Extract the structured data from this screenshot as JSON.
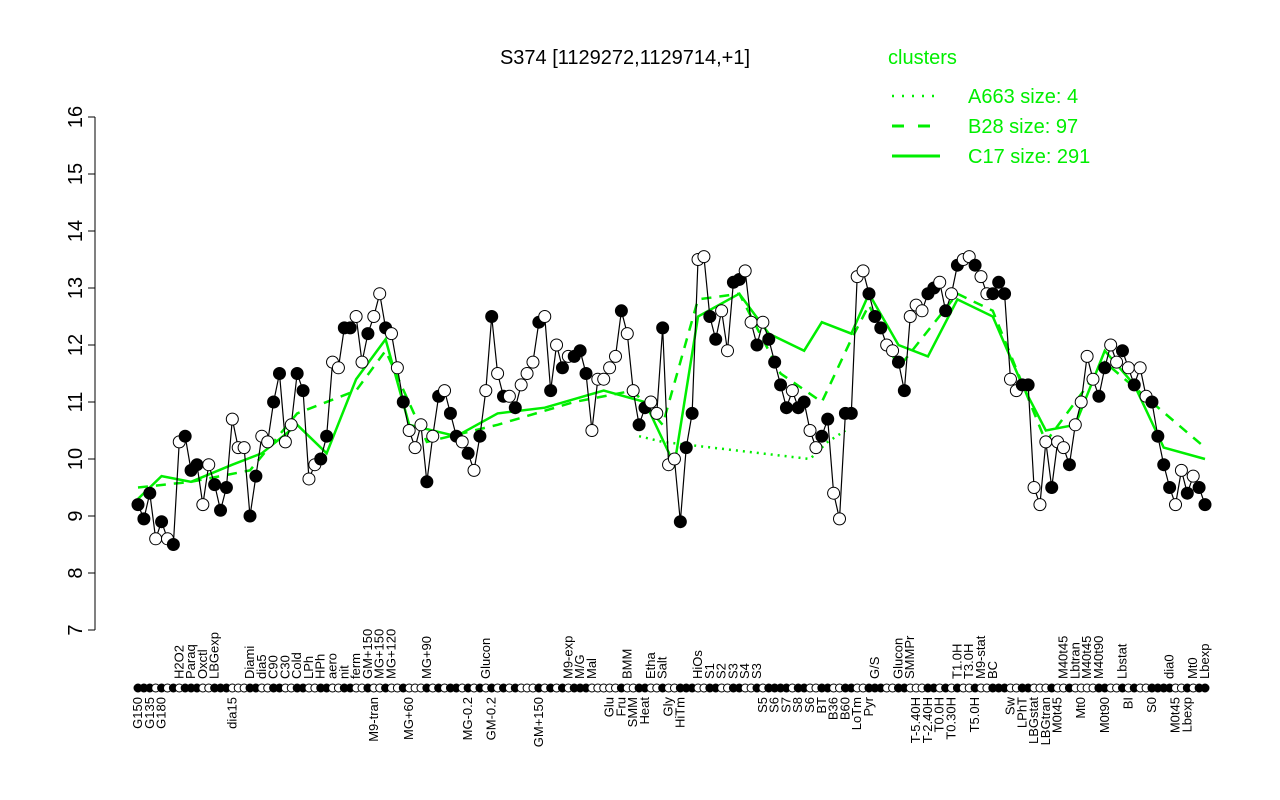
{
  "chart_data": {
    "type": "line",
    "title": "S374 [1129272,1129714,+1]",
    "xlabel": "",
    "ylabel": "",
    "ylim": [
      7,
      16
    ],
    "yticks": [
      7,
      8,
      9,
      10,
      11,
      12,
      13,
      14,
      15,
      16
    ],
    "grid": false,
    "legend": {
      "title": "clusters",
      "placement": "top-right",
      "entries": [
        {
          "label": "A663 size: 4",
          "style": "dotted"
        },
        {
          "label": "B28 size: 97",
          "style": "dashed"
        },
        {
          "label": "C17 size: 291",
          "style": "solid"
        }
      ]
    },
    "colors": {
      "points": "#000000",
      "clusters": "#00ee00"
    },
    "points": [
      [
        "G150",
        9.2,
        1
      ],
      [
        "",
        8.95,
        1
      ],
      [
        "G135",
        9.4,
        1
      ],
      [
        "",
        8.6,
        0
      ],
      [
        "G180",
        8.9,
        1
      ],
      [
        "",
        8.6,
        0
      ],
      [
        "",
        8.5,
        1
      ],
      [
        "H2O2",
        10.3,
        0
      ],
      [
        "",
        10.4,
        1
      ],
      [
        "Paraq",
        9.8,
        1
      ],
      [
        "",
        9.9,
        1
      ],
      [
        "Oxctl",
        9.2,
        0
      ],
      [
        "",
        9.9,
        0
      ],
      [
        "LBGexp",
        9.55,
        1
      ],
      [
        "",
        9.1,
        1
      ],
      [
        "",
        9.5,
        1
      ],
      [
        "dia15",
        10.7,
        0
      ],
      [
        "",
        10.2,
        0
      ],
      [
        "",
        10.2,
        0
      ],
      [
        "Diami",
        9.0,
        1
      ],
      [
        "",
        9.7,
        1
      ],
      [
        "dia5",
        10.4,
        0
      ],
      [
        "",
        10.3,
        0
      ],
      [
        "C90",
        11.0,
        1
      ],
      [
        "",
        11.5,
        1
      ],
      [
        "C30",
        10.3,
        0
      ],
      [
        "",
        10.6,
        0
      ],
      [
        "Cold",
        11.5,
        1
      ],
      [
        "",
        11.2,
        1
      ],
      [
        "LPh",
        9.65,
        0
      ],
      [
        "",
        9.9,
        0
      ],
      [
        "HPh",
        10.0,
        1
      ],
      [
        "",
        10.4,
        1
      ],
      [
        "aero",
        11.7,
        0
      ],
      [
        "",
        11.6,
        0
      ],
      [
        "nit",
        12.3,
        1
      ],
      [
        "",
        12.3,
        1
      ],
      [
        "ferm",
        12.5,
        0
      ],
      [
        "",
        11.7,
        0
      ],
      [
        "GM+150",
        12.2,
        1
      ],
      [
        "M9-tran",
        12.5,
        0
      ],
      [
        "MG+150",
        12.9,
        0
      ],
      [
        "",
        12.3,
        1
      ],
      [
        "MG+120",
        12.2,
        0
      ],
      [
        "",
        11.6,
        0
      ],
      [
        "",
        11.0,
        1
      ],
      [
        "MG+60",
        10.5,
        0
      ],
      [
        "",
        10.2,
        0
      ],
      [
        "",
        10.6,
        0
      ],
      [
        "MG+90",
        9.6,
        1
      ],
      [
        "",
        10.4,
        0
      ],
      [
        "",
        11.1,
        1
      ],
      [
        "",
        11.2,
        0
      ],
      [
        "",
        10.8,
        1
      ],
      [
        "",
        10.4,
        1
      ],
      [
        "",
        10.3,
        0
      ],
      [
        "MG-0.2",
        10.1,
        1
      ],
      [
        "",
        9.8,
        0
      ],
      [
        "",
        10.4,
        1
      ],
      [
        "Glucon",
        11.2,
        0
      ],
      [
        "GM-0.2",
        12.5,
        1
      ],
      [
        "",
        11.5,
        0
      ],
      [
        "",
        11.1,
        1
      ],
      [
        "",
        11.1,
        0
      ],
      [
        "",
        10.9,
        1
      ],
      [
        "",
        11.3,
        0
      ],
      [
        "",
        11.5,
        0
      ],
      [
        "",
        11.7,
        0
      ],
      [
        "GM+150",
        12.4,
        1
      ],
      [
        "",
        12.5,
        0
      ],
      [
        "",
        11.2,
        1
      ],
      [
        "",
        12.0,
        0
      ],
      [
        "",
        11.6,
        1
      ],
      [
        "M9-exp",
        11.8,
        0
      ],
      [
        "",
        11.8,
        1
      ],
      [
        "M/G",
        11.9,
        1
      ],
      [
        "",
        11.5,
        1
      ],
      [
        "Mal",
        10.5,
        0
      ],
      [
        "",
        11.4,
        0
      ],
      [
        "",
        11.4,
        0
      ],
      [
        "Glu",
        11.6,
        0
      ],
      [
        "",
        11.8,
        0
      ],
      [
        "Fru",
        12.6,
        1
      ],
      [
        "BMM",
        12.2,
        0
      ],
      [
        "SMM",
        11.2,
        0
      ],
      [
        "",
        10.6,
        1
      ],
      [
        "Heat",
        10.9,
        1
      ],
      [
        "Etha",
        11.0,
        0
      ],
      [
        "",
        10.8,
        0
      ],
      [
        "Salt",
        12.3,
        1
      ],
      [
        "Gly",
        9.9,
        0
      ],
      [
        "",
        10.0,
        0
      ],
      [
        "HiTm",
        8.9,
        1
      ],
      [
        "",
        10.2,
        1
      ],
      [
        "",
        10.8,
        1
      ],
      [
        "HiOs",
        13.5,
        0
      ],
      [
        "",
        13.55,
        0
      ],
      [
        "S1",
        12.5,
        1
      ],
      [
        "",
        12.1,
        1
      ],
      [
        "S2",
        12.6,
        0
      ],
      [
        "",
        11.9,
        0
      ],
      [
        "S3",
        13.1,
        1
      ],
      [
        "",
        13.15,
        1
      ],
      [
        "S4",
        13.3,
        0
      ],
      [
        "",
        12.4,
        0
      ],
      [
        "S3",
        12.0,
        1
      ],
      [
        "S5",
        12.4,
        0
      ],
      [
        "",
        12.1,
        1
      ],
      [
        "S6",
        11.7,
        1
      ],
      [
        "",
        11.3,
        1
      ],
      [
        "S7",
        10.9,
        1
      ],
      [
        "",
        11.2,
        0
      ],
      [
        "S8",
        10.9,
        1
      ],
      [
        "",
        11.0,
        1
      ],
      [
        "S6",
        10.5,
        0
      ],
      [
        "",
        10.2,
        0
      ],
      [
        "BT",
        10.4,
        1
      ],
      [
        "",
        10.7,
        1
      ],
      [
        "B36",
        9.4,
        0
      ],
      [
        "",
        8.95,
        0
      ],
      [
        "B60",
        10.8,
        1
      ],
      [
        "",
        10.8,
        1
      ],
      [
        "LoTm",
        13.2,
        0
      ],
      [
        "",
        13.3,
        0
      ],
      [
        "Pyr",
        12.9,
        1
      ],
      [
        "G/S",
        12.5,
        1
      ],
      [
        "",
        12.3,
        1
      ],
      [
        "",
        12.0,
        0
      ],
      [
        "",
        11.9,
        0
      ],
      [
        "Glucon",
        11.7,
        1
      ],
      [
        "",
        11.2,
        1
      ],
      [
        "SMMPr",
        12.5,
        0
      ],
      [
        "T-5.40H",
        12.7,
        0
      ],
      [
        "",
        12.6,
        0
      ],
      [
        "T-2.40H",
        12.9,
        1
      ],
      [
        "",
        13.0,
        1
      ],
      [
        "T0.0H",
        13.1,
        0
      ],
      [
        "",
        12.6,
        1
      ],
      [
        "T0.30H",
        12.9,
        0
      ],
      [
        "T1.0H",
        13.4,
        1
      ],
      [
        "",
        13.5,
        0
      ],
      [
        "T3.0H",
        13.55,
        0
      ],
      [
        "T5.0H",
        13.4,
        1
      ],
      [
        "M9-stat",
        13.2,
        0
      ],
      [
        "",
        12.9,
        0
      ],
      [
        "BC",
        12.9,
        1
      ],
      [
        "",
        13.1,
        1
      ],
      [
        "",
        12.9,
        1
      ],
      [
        "Sw",
        11.4,
        0
      ],
      [
        "",
        11.2,
        0
      ],
      [
        "LPhT",
        11.3,
        1
      ],
      [
        "",
        11.3,
        1
      ],
      [
        "LBGstat",
        9.5,
        0
      ],
      [
        "",
        9.2,
        0
      ],
      [
        "LBGtran",
        10.3,
        0
      ],
      [
        "",
        9.5,
        1
      ],
      [
        "M0t45",
        10.3,
        0
      ],
      [
        "M40t45",
        10.2,
        0
      ],
      [
        "",
        9.9,
        1
      ],
      [
        "Lbtran",
        10.6,
        0
      ],
      [
        "Mt0",
        11.0,
        0
      ],
      [
        "M40t45",
        11.8,
        0
      ],
      [
        "",
        11.4,
        0
      ],
      [
        "M40t90",
        11.1,
        1
      ],
      [
        "M0t90",
        11.6,
        1
      ],
      [
        "",
        12.0,
        0
      ],
      [
        "",
        11.7,
        0
      ],
      [
        "Lbstat",
        11.9,
        1
      ],
      [
        "BI",
        11.6,
        0
      ],
      [
        "",
        11.3,
        1
      ],
      [
        "",
        11.6,
        0
      ],
      [
        "",
        11.1,
        0
      ],
      [
        "S0",
        11.0,
        1
      ],
      [
        "",
        10.4,
        1
      ],
      [
        "",
        9.9,
        1
      ],
      [
        "dia0",
        9.5,
        1
      ],
      [
        "M0t45",
        9.2,
        0
      ],
      [
        "",
        9.8,
        0
      ],
      [
        "Lbexp",
        9.4,
        1
      ],
      [
        "Mt0",
        9.7,
        0
      ],
      [
        "",
        9.5,
        1
      ],
      [
        "Lbexp",
        9.2,
        1
      ]
    ],
    "clusters": [
      {
        "name": "A663",
        "style": "dotted",
        "values": [
          [
            86,
            10.4
          ],
          [
            90,
            10.3
          ],
          [
            115,
            10.0
          ],
          [
            118,
            10.3
          ],
          [
            121,
            10.5
          ]
        ]
      },
      {
        "name": "B28",
        "style": "dashed",
        "values": [
          [
            1,
            9.5
          ],
          [
            10,
            9.6
          ],
          [
            20,
            9.8
          ],
          [
            28,
            10.8
          ],
          [
            38,
            11.2
          ],
          [
            43,
            11.9
          ],
          [
            50,
            10.3
          ],
          [
            62,
            10.6
          ],
          [
            75,
            11.0
          ],
          [
            85,
            11.2
          ],
          [
            90,
            10.6
          ],
          [
            96,
            12.8
          ],
          [
            103,
            12.9
          ],
          [
            110,
            11.5
          ],
          [
            117,
            11.0
          ],
          [
            122,
            12.1
          ],
          [
            125,
            12.7
          ],
          [
            130,
            11.6
          ],
          [
            140,
            12.9
          ],
          [
            146,
            12.6
          ],
          [
            155,
            10.3
          ],
          [
            165,
            11.7
          ],
          [
            182,
            10.2
          ]
        ]
      },
      {
        "name": "C17",
        "style": "solid",
        "values": [
          [
            1,
            9.3
          ],
          [
            5,
            9.7
          ],
          [
            10,
            9.6
          ],
          [
            17,
            9.9
          ],
          [
            22,
            10.1
          ],
          [
            28,
            10.6
          ],
          [
            33,
            10.1
          ],
          [
            38,
            11.4
          ],
          [
            43,
            12.1
          ],
          [
            47,
            10.6
          ],
          [
            55,
            10.4
          ],
          [
            62,
            10.8
          ],
          [
            70,
            10.9
          ],
          [
            80,
            11.2
          ],
          [
            87,
            11.0
          ],
          [
            92,
            9.9
          ],
          [
            96,
            12.5
          ],
          [
            103,
            12.9
          ],
          [
            108,
            12.2
          ],
          [
            114,
            11.9
          ],
          [
            117,
            12.4
          ],
          [
            122,
            12.2
          ],
          [
            125,
            12.9
          ],
          [
            130,
            12.0
          ],
          [
            135,
            11.8
          ],
          [
            140,
            12.8
          ],
          [
            146,
            12.5
          ],
          [
            151,
            11.3
          ],
          [
            155,
            10.5
          ],
          [
            160,
            10.6
          ],
          [
            165,
            11.9
          ],
          [
            170,
            11.3
          ],
          [
            175,
            10.2
          ],
          [
            182,
            10.0
          ]
        ]
      }
    ]
  }
}
